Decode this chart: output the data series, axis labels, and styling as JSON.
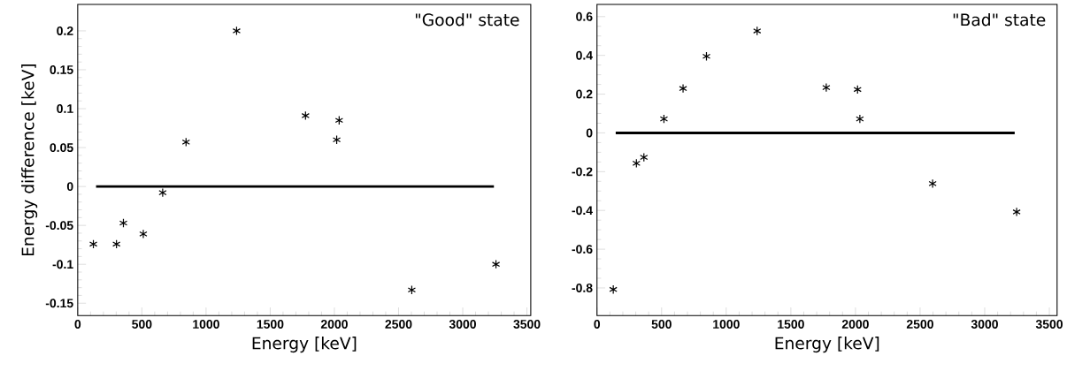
{
  "chart_data": [
    {
      "type": "scatter",
      "xlabel": "Energy [keV]",
      "ylabel": "Energy difference [keV]",
      "annotations": [
        "\"Good\" state"
      ],
      "xlim": [
        0,
        3530
      ],
      "ylim": [
        -0.166,
        0.234
      ],
      "xticks": [
        0,
        500,
        1000,
        1500,
        2000,
        2500,
        3000,
        3500
      ],
      "yticks": [
        -0.15,
        -0.1,
        -0.05,
        0,
        0.05,
        0.1,
        0.15,
        0.2
      ],
      "x": [
        122,
        302,
        356,
        511,
        662,
        844,
        1238,
        1775,
        2018,
        2037,
        2603,
        3259
      ],
      "series": [
        {
          "color": "#000000",
          "marker": "cross",
          "values": [
            -0.074,
            -0.074,
            -0.047,
            -0.061,
            -0.008,
            0.057,
            0.2,
            0.091,
            0.06,
            0.085,
            -0.133,
            -0.1
          ]
        },
        {
          "type": "line",
          "color": "#000000",
          "marker": "none",
          "x": [
            143,
            3243
          ],
          "values": [
            0,
            0
          ]
        }
      ]
    },
    {
      "type": "scatter",
      "xlabel": "Energy [keV]",
      "annotations": [
        "\"Bad\" state"
      ],
      "xlim": [
        0,
        3560
      ],
      "ylim": [
        -0.943,
        0.663
      ],
      "xticks": [
        0,
        500,
        1000,
        1500,
        2000,
        2500,
        3000,
        3500
      ],
      "yticks": [
        -0.8,
        -0.6,
        -0.4,
        -0.2,
        0,
        0.2,
        0.4,
        0.6
      ],
      "x": [
        126,
        305,
        363,
        518,
        666,
        847,
        1239,
        1774,
        2016,
        2034,
        2597,
        3247
      ],
      "series": [
        {
          "color": "#000000",
          "marker": "cross",
          "values": [
            -0.808,
            -0.157,
            -0.126,
            0.072,
            0.229,
            0.395,
            0.526,
            0.234,
            0.224,
            0.072,
            -0.262,
            -0.408
          ]
        },
        {
          "type": "line",
          "color": "#000000",
          "marker": "none",
          "x": [
            145,
            3232
          ],
          "values": [
            0,
            0
          ]
        }
      ]
    }
  ]
}
